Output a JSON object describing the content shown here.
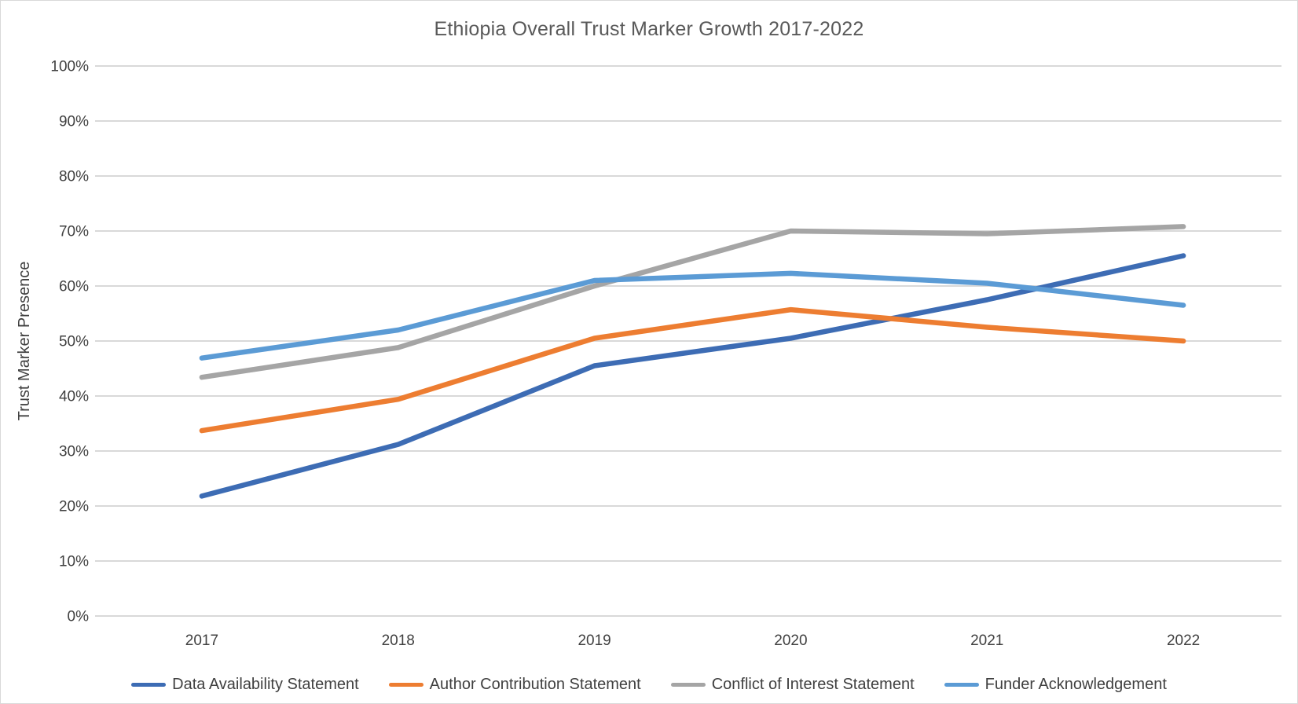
{
  "chart": {
    "title": "Ethiopia Overall Trust Marker Growth 2017-2022",
    "y_axis_title": "Trust Marker Presence"
  },
  "chart_data": {
    "type": "line",
    "title": "Ethiopia Overall Trust Marker Growth 2017-2022",
    "xlabel": "",
    "ylabel": "Trust Marker Presence",
    "categories": [
      "2017",
      "2018",
      "2019",
      "2020",
      "2021",
      "2022"
    ],
    "series": [
      {
        "name": "Data Availability Statement",
        "color": "#3D6CB4",
        "values": [
          21.8,
          31.2,
          45.5,
          50.5,
          57.5,
          65.5
        ]
      },
      {
        "name": "Author Contribution Statement",
        "color": "#ED7D31",
        "values": [
          33.7,
          39.4,
          50.5,
          55.7,
          52.5,
          50.0
        ]
      },
      {
        "name": "Conflict of Interest Statement",
        "color": "#A5A5A5",
        "values": [
          43.4,
          48.8,
          60.0,
          70.0,
          69.5,
          70.8
        ]
      },
      {
        "name": "Funder Acknowledgement",
        "color": "#5B9BD5",
        "values": [
          46.9,
          52.0,
          61.0,
          62.3,
          60.5,
          56.5
        ]
      }
    ],
    "ylim": [
      0,
      100
    ],
    "ytick_step": 10,
    "ytick_format": "percent",
    "grid": "horizontal",
    "grid_color": "#D9D9D9",
    "legend_position": "bottom"
  }
}
